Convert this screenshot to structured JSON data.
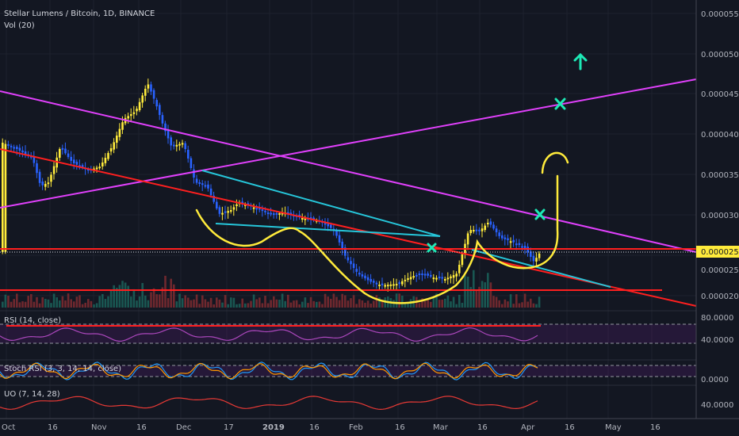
{
  "header": {
    "symbol_line": "Stellar Lumens / Bitcoin, 1D, BINANCE",
    "volume_indicator": "Vol (20)"
  },
  "price_axis": {
    "ticks": [
      "0.00005500",
      "0.00005000",
      "0.00004500",
      "0.00004000",
      "0.00003500",
      "0.00003000",
      "0.00002500",
      "0.00002000"
    ],
    "current_price": "0.00002532"
  },
  "time_axis": {
    "ticks": [
      "Oct",
      "16",
      "Nov",
      "16",
      "Dec",
      "17",
      "2019",
      "16",
      "Feb",
      "16",
      "Mar",
      "16",
      "Apr",
      "16",
      "May",
      "16"
    ]
  },
  "panes": {
    "rsi": {
      "label": "RSI (14, close)",
      "ticks": [
        "80.0000",
        "40.0000"
      ]
    },
    "stoch": {
      "label": "Stoch RSI (3, 3, 14, 14, close)",
      "ticks": [
        "0.0000"
      ]
    },
    "uo": {
      "label": "UO (7, 14, 28)",
      "ticks": [
        "40.0000"
      ]
    }
  },
  "colors": {
    "background": "#131722",
    "up_candle": "#ffeb3b",
    "down_candle": "#2962ff",
    "magenta_line": "#e040fb",
    "trend_red": "#ff1f1f",
    "cyan_line": "#26c6da",
    "annotation_yellow": "#ffeb3b",
    "marker_green": "#1de9b6"
  }
}
